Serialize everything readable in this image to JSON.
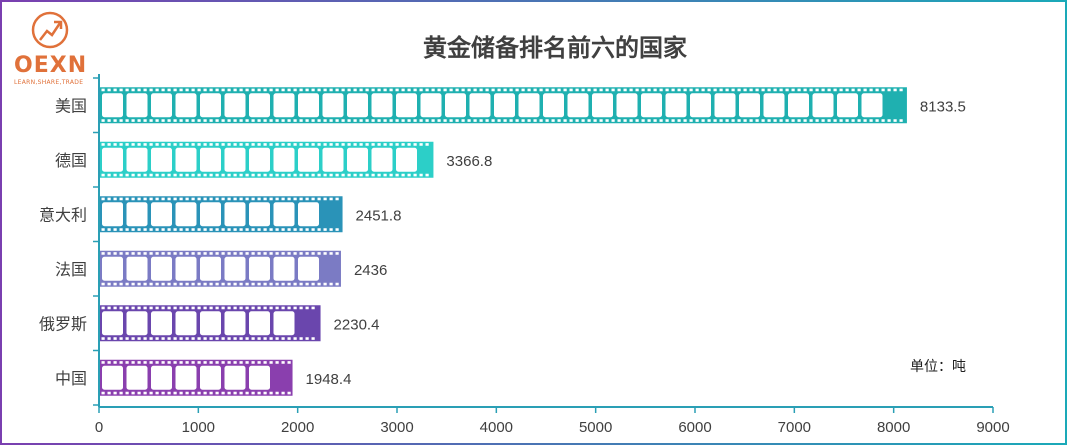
{
  "logo": {
    "text": "OEXN",
    "tagline": "LEARN,SHARE,TRADE",
    "icon": "trend-up-circle-icon",
    "color": "#e0713a"
  },
  "chart_data": {
    "type": "bar",
    "orientation": "horizontal",
    "title": "黄金储备排名前六的国家",
    "unit_note": "单位：吨",
    "categories": [
      "美国",
      "德国",
      "意大利",
      "法国",
      "俄罗斯",
      "中国"
    ],
    "values": [
      8133.5,
      3366.8,
      2451.8,
      2436,
      2230.4,
      1948.4
    ],
    "value_labels": [
      "8133.5",
      "3366.8",
      "2451.8",
      "2436",
      "2230.4",
      "1948.4"
    ],
    "colors": [
      "#1fb0b0",
      "#2ccfc8",
      "#2a93b8",
      "#7b7bc4",
      "#6a46ad",
      "#8a3fae"
    ],
    "xlim": [
      0,
      9000
    ],
    "xticks": [
      0,
      1000,
      2000,
      3000,
      4000,
      5000,
      6000,
      7000,
      8000,
      9000
    ],
    "xtick_labels": [
      "0",
      "1000",
      "2000",
      "3000",
      "4000",
      "5000",
      "6000",
      "7000",
      "8000",
      "9000"
    ],
    "axis_color": "#2a9fb5",
    "grid": false,
    "legend": "none",
    "bar_style": "film-strip"
  }
}
